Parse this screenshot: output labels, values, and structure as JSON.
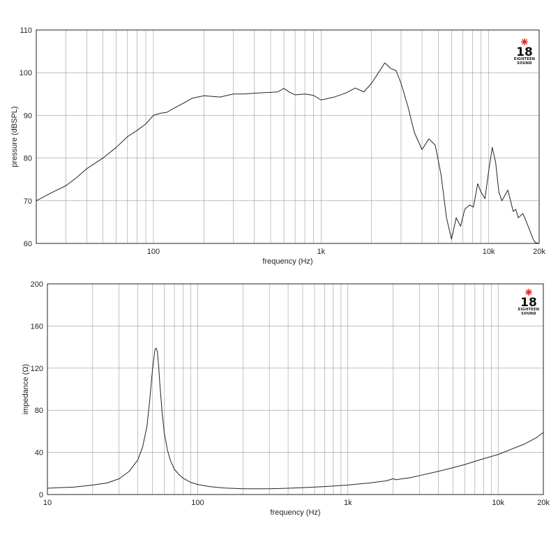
{
  "brand": {
    "logo_number": "18",
    "logo_line1": "EIGHTEEN",
    "logo_line2": "SOUND",
    "star_color": "#e0201b"
  },
  "colors": {
    "curve": "#222222",
    "grid": "#9a9a9a",
    "frame": "#222222"
  },
  "chart_data": [
    {
      "type": "line",
      "xscale": "log",
      "xlim": [
        20,
        20000
      ],
      "ylim": [
        60,
        110
      ],
      "xlabel": "frequency (Hz)",
      "ylabel": "pressure (dBSPL)",
      "xticks": [
        {
          "value": 100,
          "label": "100"
        },
        {
          "value": 1000,
          "label": "1k"
        },
        {
          "value": 10000,
          "label": "10k"
        },
        {
          "value": 20000,
          "label": "20k"
        }
      ],
      "yticks": [
        {
          "value": 60,
          "label": "60"
        },
        {
          "value": 70,
          "label": "70"
        },
        {
          "value": 80,
          "label": "80"
        },
        {
          "value": 90,
          "label": "90"
        },
        {
          "value": 100,
          "label": "100"
        },
        {
          "value": 110,
          "label": "110"
        }
      ],
      "grid": true,
      "series": [
        {
          "x": [
            20,
            25,
            30,
            35,
            40,
            50,
            60,
            70,
            80,
            90,
            100,
            110,
            120,
            130,
            150,
            170,
            200,
            250,
            300,
            350,
            400,
            500,
            550,
            600,
            650,
            700,
            800,
            900,
            1000,
            1200,
            1400,
            1600,
            1800,
            2000,
            2200,
            2400,
            2600,
            2800,
            3000,
            3300,
            3600,
            4000,
            4400,
            4800,
            5200,
            5600,
            6000,
            6400,
            6800,
            7200,
            7700,
            8100,
            8600,
            9000,
            9500,
            10000,
            10500,
            11000,
            11500,
            12000,
            13000,
            13500,
            14000,
            14500,
            15000,
            16000,
            17000,
            18000,
            18500,
            19000,
            20000
          ],
          "y": [
            70,
            72,
            73.5,
            75.5,
            77.5,
            80,
            82.5,
            85,
            86.5,
            88,
            90,
            90.5,
            90.7,
            91.5,
            92.8,
            94,
            94.6,
            94.3,
            95,
            95,
            95.2,
            95.4,
            95.5,
            96.3,
            95.4,
            94.8,
            95,
            94.7,
            93.6,
            94.3,
            95.2,
            96.4,
            95.5,
            97.5,
            100,
            102.3,
            101,
            100.5,
            97.5,
            92,
            86,
            82,
            84.5,
            83,
            76,
            66,
            61,
            66,
            64,
            68,
            69,
            68.5,
            74,
            72,
            70.5,
            77,
            82.5,
            79,
            72,
            70,
            72.5,
            70,
            67.5,
            68,
            66,
            67,
            64.5,
            62,
            60.8,
            60.2,
            60
          ]
        }
      ]
    },
    {
      "type": "line",
      "xscale": "log",
      "xlim": [
        10,
        20000
      ],
      "ylim": [
        0,
        200
      ],
      "xlabel": "frequency (Hz)",
      "ylabel": "impedance (Ω)",
      "xticks": [
        {
          "value": 10,
          "label": "10"
        },
        {
          "value": 100,
          "label": "100"
        },
        {
          "value": 1000,
          "label": "1k"
        },
        {
          "value": 10000,
          "label": "10k"
        },
        {
          "value": 20000,
          "label": "20k"
        }
      ],
      "yticks": [
        {
          "value": 0,
          "label": "0"
        },
        {
          "value": 40,
          "label": "40"
        },
        {
          "value": 80,
          "label": "80"
        },
        {
          "value": 120,
          "label": "120"
        },
        {
          "value": 160,
          "label": "160"
        },
        {
          "value": 200,
          "label": "200"
        }
      ],
      "grid": true,
      "series": [
        {
          "x": [
            10,
            12,
            15,
            20,
            25,
            30,
            35,
            40,
            43,
            46,
            48,
            50,
            52,
            53,
            54,
            55,
            56,
            58,
            60,
            63,
            66,
            70,
            75,
            80,
            90,
            100,
            120,
            150,
            200,
            250,
            300,
            400,
            500,
            700,
            1000,
            1400,
            1800,
            2000,
            2100,
            2300,
            2600,
            3000,
            4000,
            5000,
            6000,
            8000,
            10000,
            12000,
            15000,
            18000,
            20000
          ],
          "y": [
            6,
            6.5,
            7,
            9,
            11,
            15,
            22,
            33,
            45,
            65,
            90,
            118,
            138,
            139,
            135,
            122,
            105,
            78,
            58,
            42,
            32,
            24,
            19,
            15.5,
            11.5,
            9.5,
            7.5,
            6.2,
            5.5,
            5.5,
            5.5,
            6,
            6.5,
            7.5,
            9,
            11,
            13,
            15,
            14,
            15,
            16,
            18,
            22,
            25.5,
            28.5,
            34,
            38,
            42.5,
            48,
            54,
            59
          ]
        }
      ]
    }
  ]
}
